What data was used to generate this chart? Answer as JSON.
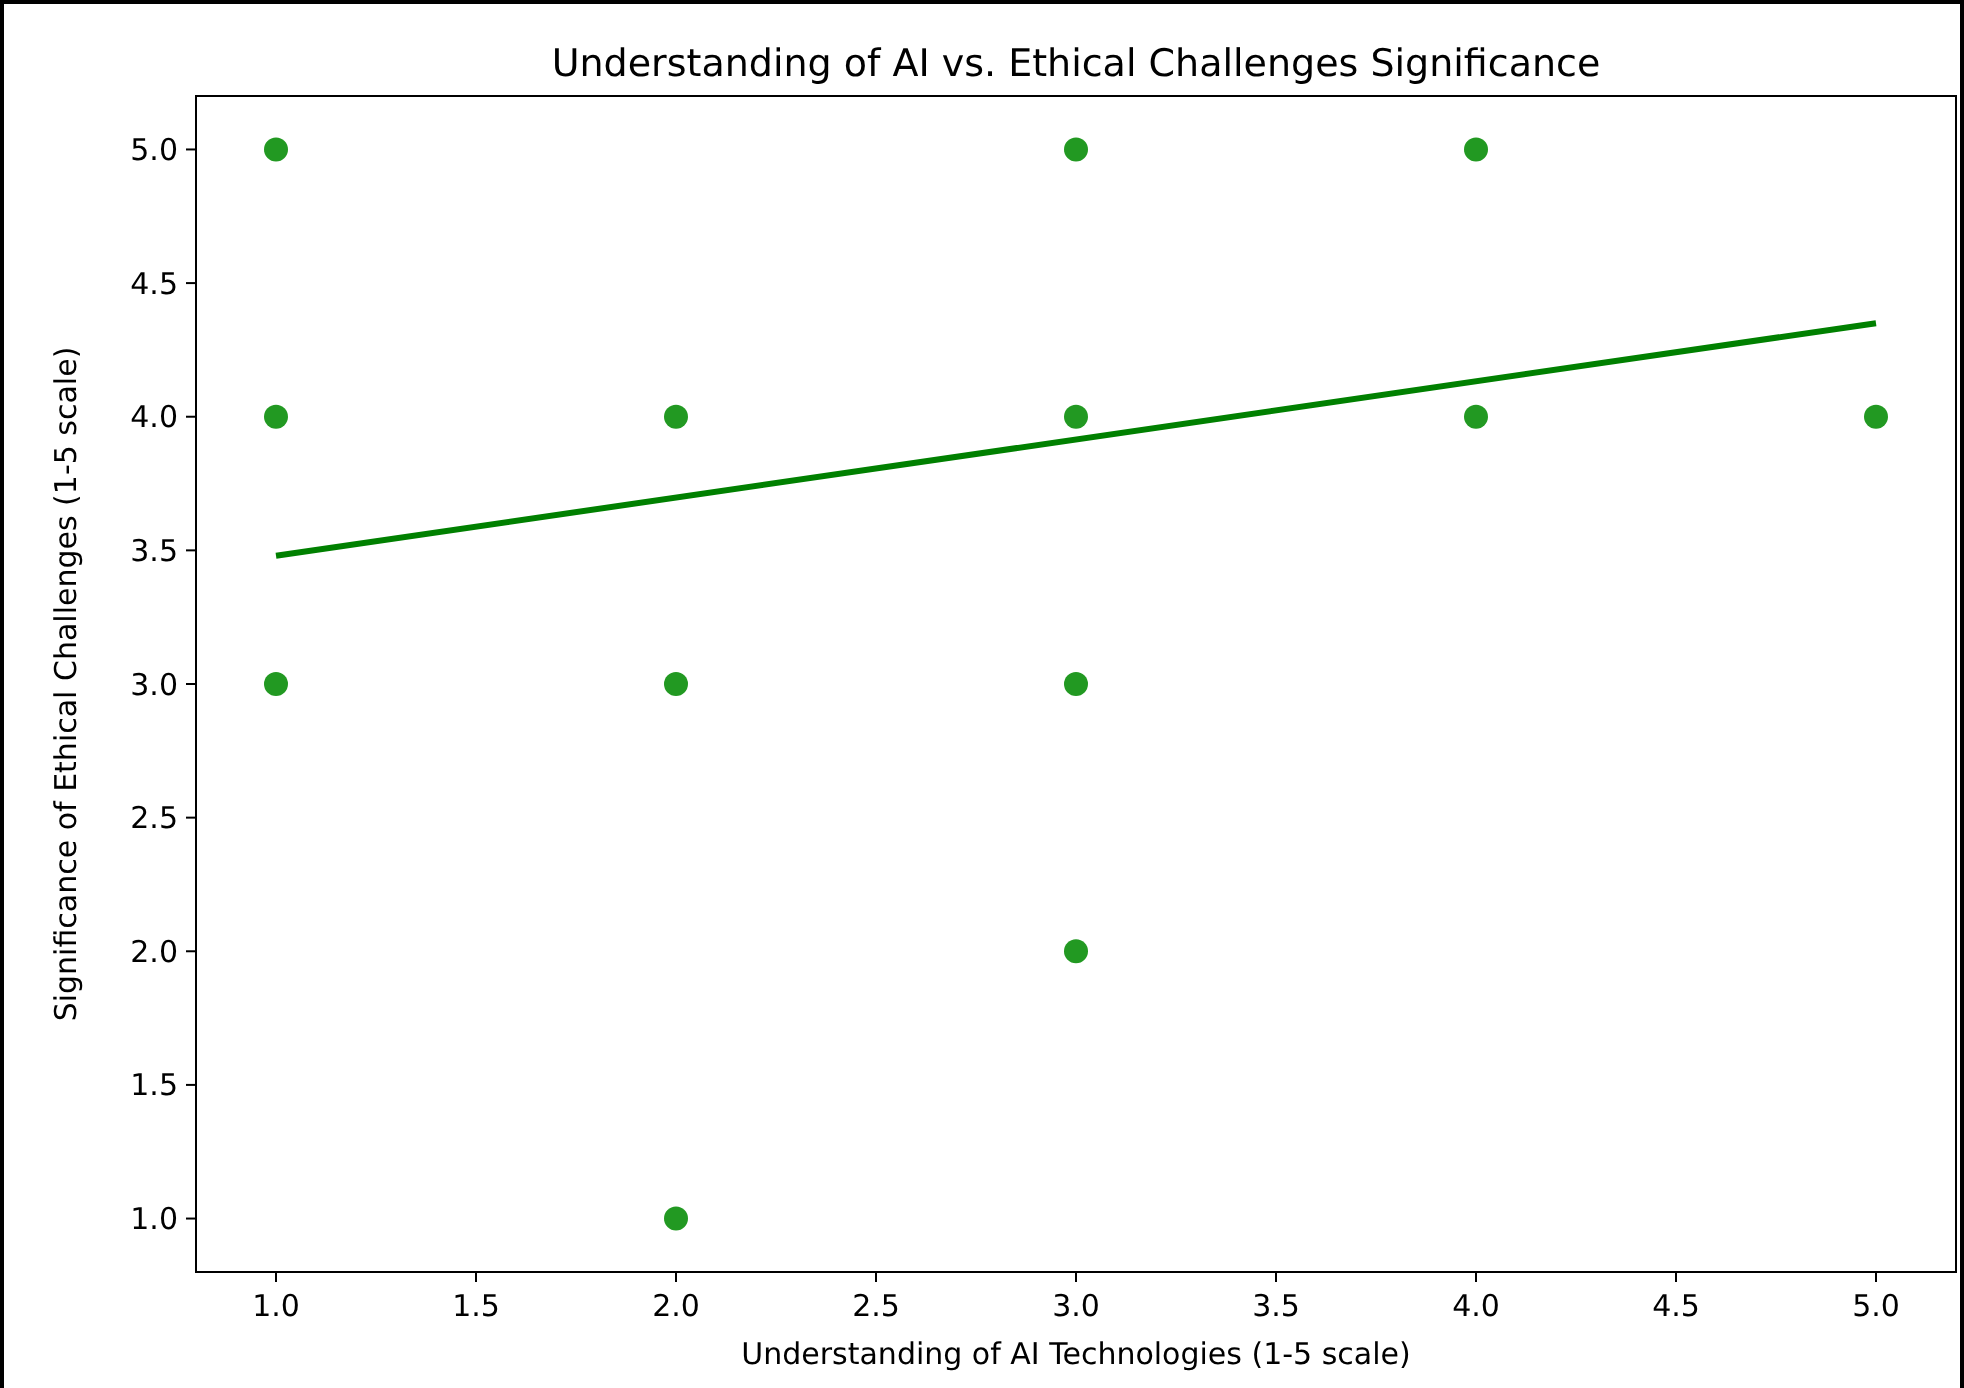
{
  "chart_data": {
    "type": "scatter",
    "title": "Understanding of AI vs. Ethical Challenges Significance",
    "xlabel": "Understanding of AI Technologies (1-5 scale)",
    "ylabel": "Significance of Ethical Challenges (1-5 scale)",
    "xlim": [
      0.8,
      5.2
    ],
    "ylim": [
      0.8,
      5.2
    ],
    "xticks": [
      {
        "value": 1,
        "label": "1.0"
      },
      {
        "value": 1.5,
        "label": "1.5"
      },
      {
        "value": 2,
        "label": "2.0"
      },
      {
        "value": 2.5,
        "label": "2.5"
      },
      {
        "value": 3,
        "label": "3.0"
      },
      {
        "value": 3.5,
        "label": "3.5"
      },
      {
        "value": 4,
        "label": "4.0"
      },
      {
        "value": 4.5,
        "label": "4.5"
      },
      {
        "value": 5,
        "label": "5.0"
      }
    ],
    "yticks": [
      {
        "value": 1,
        "label": "1.0"
      },
      {
        "value": 1.5,
        "label": "1.5"
      },
      {
        "value": 2,
        "label": "2.0"
      },
      {
        "value": 2.5,
        "label": "2.5"
      },
      {
        "value": 3,
        "label": "3.0"
      },
      {
        "value": 3.5,
        "label": "3.5"
      },
      {
        "value": 4,
        "label": "4.0"
      },
      {
        "value": 4.5,
        "label": "4.5"
      },
      {
        "value": 5,
        "label": "5.0"
      }
    ],
    "grid": false,
    "line_style": "solid",
    "series": [
      {
        "marker": "circle",
        "color": "#229922",
        "x": [
          1,
          1,
          1,
          2,
          2,
          2,
          3,
          3,
          3,
          3,
          4,
          4,
          5
        ],
        "values": [
          5,
          4,
          3,
          4,
          3,
          1,
          5,
          4,
          3,
          2,
          5,
          4,
          4
        ]
      },
      {
        "type": "line",
        "color": "#008000",
        "x": [
          1,
          5
        ],
        "values": [
          3.48,
          4.35
        ]
      }
    ]
  }
}
